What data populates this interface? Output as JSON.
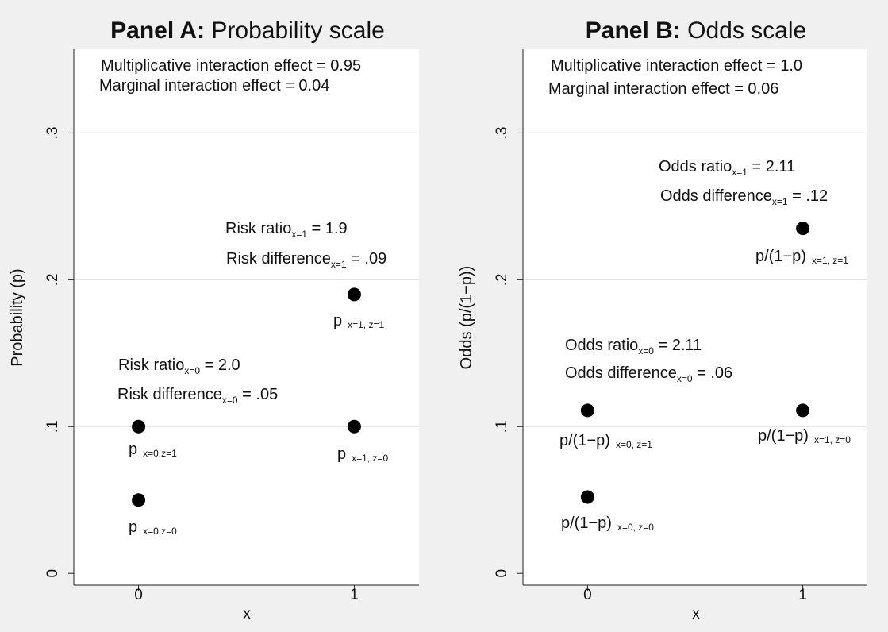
{
  "chart_data": [
    {
      "type": "scatter",
      "title_bold": "Panel A:",
      "title_rest": " Probability scale",
      "xlabel": "x",
      "ylabel": "Probability (p)",
      "xticks": [
        {
          "value": 0,
          "label": "0"
        },
        {
          "value": 1,
          "label": "1"
        }
      ],
      "yticks": [
        {
          "value": 0,
          "label": "0"
        },
        {
          "value": 0.1,
          "label": ".1"
        },
        {
          "value": 0.2,
          "label": ".2"
        },
        {
          "value": 0.3,
          "label": ".3"
        }
      ],
      "xlim": [
        -0.3,
        1.3
      ],
      "ylim": [
        -0.008,
        0.357
      ],
      "grid": true,
      "points": [
        {
          "x": 0,
          "y": 0.05,
          "label_main": "p",
          "label_sub": "x=0,z=0"
        },
        {
          "x": 0,
          "y": 0.1,
          "label_main": "p",
          "label_sub": "x=0,z=1"
        },
        {
          "x": 1,
          "y": 0.1,
          "label_main": "p",
          "label_sub": "x=1, z=0"
        },
        {
          "x": 1,
          "y": 0.19,
          "label_main": "p",
          "label_sub": "x=1, z=1"
        }
      ],
      "annotations": [
        {
          "main": "Multiplicative interaction effect = 0.95",
          "sub": "",
          "tail": ""
        },
        {
          "main": "Marginal interaction effect = 0.04",
          "sub": "",
          "tail": ""
        },
        {
          "main": "Risk ratio",
          "sub": "x=1",
          "tail": " = 1.9"
        },
        {
          "main": "Risk difference",
          "sub": "x=1",
          "tail": " = .09"
        },
        {
          "main": "Risk ratio",
          "sub": "x=0",
          "tail": " = 2.0"
        },
        {
          "main": "Risk difference",
          "sub": "x=0",
          "tail": " = .05"
        }
      ]
    },
    {
      "type": "scatter",
      "title_bold": "Panel B:",
      "title_rest": " Odds scale",
      "xlabel": "x",
      "ylabel": "Odds (p/(1−p))",
      "xticks": [
        {
          "value": 0,
          "label": "0"
        },
        {
          "value": 1,
          "label": "1"
        }
      ],
      "yticks": [
        {
          "value": 0,
          "label": "0"
        },
        {
          "value": 0.1,
          "label": ".1"
        },
        {
          "value": 0.2,
          "label": ".2"
        },
        {
          "value": 0.3,
          "label": ".3"
        }
      ],
      "xlim": [
        -0.3,
        1.3
      ],
      "ylim": [
        -0.008,
        0.357
      ],
      "grid": true,
      "points": [
        {
          "x": 0,
          "y": 0.052,
          "label_main": "p/(1−p)",
          "label_sub": "x=0, z=0"
        },
        {
          "x": 0,
          "y": 0.111,
          "label_main": "p/(1−p)",
          "label_sub": "x=0, z=1"
        },
        {
          "x": 1,
          "y": 0.111,
          "label_main": "p/(1−p)",
          "label_sub": "x=1, z=0"
        },
        {
          "x": 1,
          "y": 0.235,
          "label_main": "p/(1−p)",
          "label_sub": "x=1, z=1"
        }
      ],
      "annotations": [
        {
          "main": "Multiplicative interaction effect = 1.0",
          "sub": "",
          "tail": ""
        },
        {
          "main": "Marginal interaction effect = 0.06",
          "sub": "",
          "tail": ""
        },
        {
          "main": "Odds ratio",
          "sub": "x=1",
          "tail": " = 2.11"
        },
        {
          "main": "Odds difference",
          "sub": "x=1",
          "tail": " = .12"
        },
        {
          "main": "Odds ratio",
          "sub": "x=0",
          "tail": " = 2.11"
        },
        {
          "main": "Odds difference",
          "sub": "x=0",
          "tail": " = .06"
        }
      ]
    }
  ]
}
